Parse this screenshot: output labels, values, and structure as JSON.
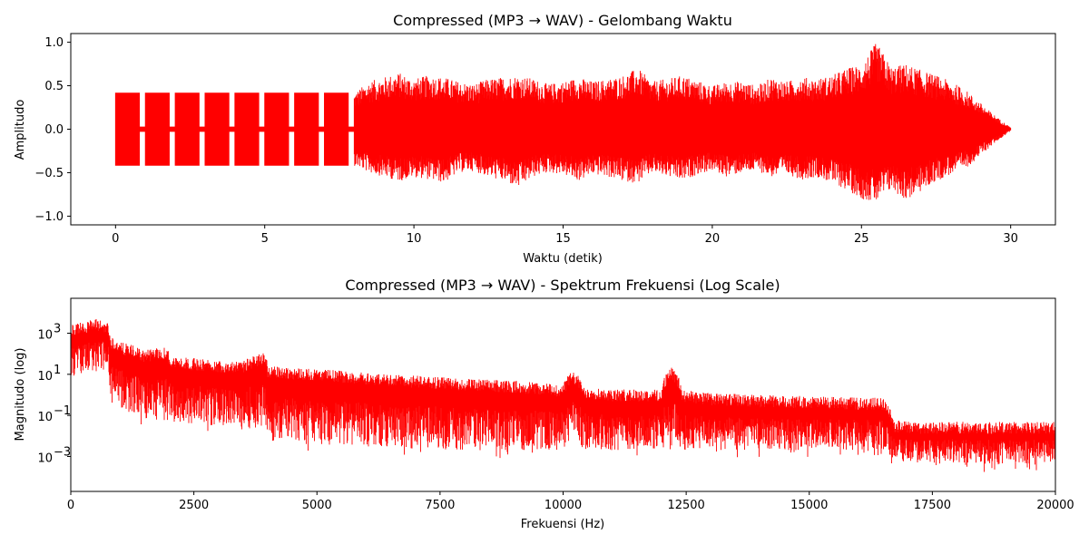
{
  "chart_data": [
    {
      "type": "line",
      "title": "Compressed (MP3 → WAV) - Gelombang Waktu",
      "xlabel": "Waktu (detik)",
      "ylabel": "Amplitudo",
      "xlim": [
        -1.5,
        31.5
      ],
      "ylim": [
        -1.1,
        1.1
      ],
      "xticks": [
        0,
        5,
        10,
        15,
        20,
        25,
        30
      ],
      "xtick_labels": [
        "0",
        "5",
        "10",
        "15",
        "20",
        "25",
        "30"
      ],
      "yticks": [
        1.0,
        0.5,
        0.0,
        -0.5,
        -1.0
      ],
      "ytick_labels": [
        "1.0",
        "0.5",
        "0.0",
        "−0.5",
        "−1.0"
      ],
      "grid": false,
      "color": "#ff0000",
      "series": [
        {
          "x": [
            0,
            0.5,
            1,
            1.5,
            2,
            2.5,
            3,
            3.5,
            4,
            4.5,
            5,
            5.5,
            6,
            6.5,
            7,
            7.5,
            8,
            8.5,
            9,
            9.5,
            10,
            10.5,
            11,
            11.5,
            12,
            12.5,
            13,
            13.5,
            14,
            14.5,
            15,
            15.5,
            16,
            16.5,
            17,
            17.5,
            18,
            18.5,
            19,
            19.5,
            20,
            20.5,
            21,
            21.5,
            22,
            22.5,
            23,
            23.5,
            24,
            24.5,
            25,
            25.5,
            26,
            26.5,
            27,
            27.5,
            28,
            28.5,
            29,
            29.5,
            30
          ],
          "y_max": [
            0.42,
            0.42,
            0.42,
            0.42,
            0.42,
            0.42,
            0.42,
            0.42,
            0.42,
            0.42,
            0.42,
            0.42,
            0.42,
            0.42,
            0.42,
            0.42,
            0.42,
            0.55,
            0.6,
            0.65,
            0.58,
            0.62,
            0.6,
            0.55,
            0.52,
            0.58,
            0.6,
            0.62,
            0.58,
            0.52,
            0.55,
            0.6,
            0.55,
            0.58,
            0.62,
            0.7,
            0.55,
            0.58,
            0.62,
            0.56,
            0.5,
            0.55,
            0.55,
            0.5,
            0.6,
            0.55,
            0.6,
            0.58,
            0.62,
            0.7,
            0.75,
            1.0,
            0.72,
            0.75,
            0.68,
            0.62,
            0.55,
            0.45,
            0.3,
            0.15,
            0.02
          ],
          "y_min": [
            -0.42,
            -0.42,
            -0.42,
            -0.42,
            -0.42,
            -0.42,
            -0.42,
            -0.42,
            -0.42,
            -0.42,
            -0.42,
            -0.42,
            -0.42,
            -0.42,
            -0.42,
            -0.42,
            -0.42,
            -0.5,
            -0.55,
            -0.6,
            -0.55,
            -0.58,
            -0.62,
            -0.5,
            -0.48,
            -0.55,
            -0.6,
            -0.68,
            -0.55,
            -0.5,
            -0.52,
            -0.6,
            -0.52,
            -0.55,
            -0.6,
            -0.62,
            -0.5,
            -0.55,
            -0.6,
            -0.52,
            -0.48,
            -0.55,
            -0.5,
            -0.48,
            -0.55,
            -0.52,
            -0.58,
            -0.55,
            -0.62,
            -0.7,
            -0.8,
            -0.85,
            -0.7,
            -0.82,
            -0.72,
            -0.6,
            -0.52,
            -0.45,
            -0.3,
            -0.15,
            -0.02
          ]
        }
      ]
    },
    {
      "type": "line",
      "title": "Compressed (MP3 → WAV) - Spektrum Frekuensi (Log Scale)",
      "xlabel": "Frekuensi (Hz)",
      "ylabel": "Magnitudo (log)",
      "xlim": [
        0,
        20000
      ],
      "ylim_log10": [
        -4.7,
        4.7
      ],
      "yscale": "log",
      "xticks": [
        0,
        2500,
        5000,
        7500,
        10000,
        12500,
        15000,
        17500,
        20000
      ],
      "xtick_labels": [
        "0",
        "2500",
        "5000",
        "7500",
        "10000",
        "12500",
        "15000",
        "17500",
        "20000"
      ],
      "ytick_exponents": [
        3,
        1,
        -1,
        -3
      ],
      "ytick_labels": [
        "10",
        "10",
        "10",
        "10"
      ],
      "grid": false,
      "color": "#ff0000",
      "series": [
        {
          "freq_hz": [
            0,
            250,
            500,
            750,
            800,
            1000,
            1500,
            1950,
            2000,
            2050,
            2500,
            3000,
            3500,
            3950,
            4000,
            4050,
            4500,
            5000,
            6000,
            7000,
            8000,
            9000,
            10000,
            10200,
            10400,
            11000,
            12000,
            12200,
            12400,
            13000,
            14000,
            15000,
            16000,
            16500,
            16700,
            17000,
            18000,
            19000,
            20000
          ],
          "upper": [
            2000,
            3000,
            4000,
            3000,
            600,
            300,
            120,
            180,
            80,
            60,
            50,
            40,
            35,
            100,
            22,
            20,
            18,
            15,
            10,
            7,
            5,
            4,
            2.5,
            12,
            2.2,
            1.5,
            1.5,
            18,
            1.5,
            1,
            0.8,
            0.7,
            0.6,
            0.6,
            0.05,
            0.04,
            0.04,
            0.04,
            0.04
          ],
          "lower": [
            5,
            10,
            20,
            15,
            0.3,
            0.2,
            0.05,
            0.05,
            0.05,
            0.05,
            0.04,
            0.03,
            0.02,
            0.03,
            0.01,
            0.005,
            0.005,
            0.004,
            0.003,
            0.003,
            0.002,
            0.002,
            0.002,
            0.01,
            0.002,
            0.002,
            0.002,
            0.003,
            0.002,
            0.002,
            0.002,
            0.002,
            0.002,
            0.002,
            0.0008,
            0.0005,
            0.0005,
            0.0004,
            0.0005
          ]
        }
      ]
    }
  ]
}
